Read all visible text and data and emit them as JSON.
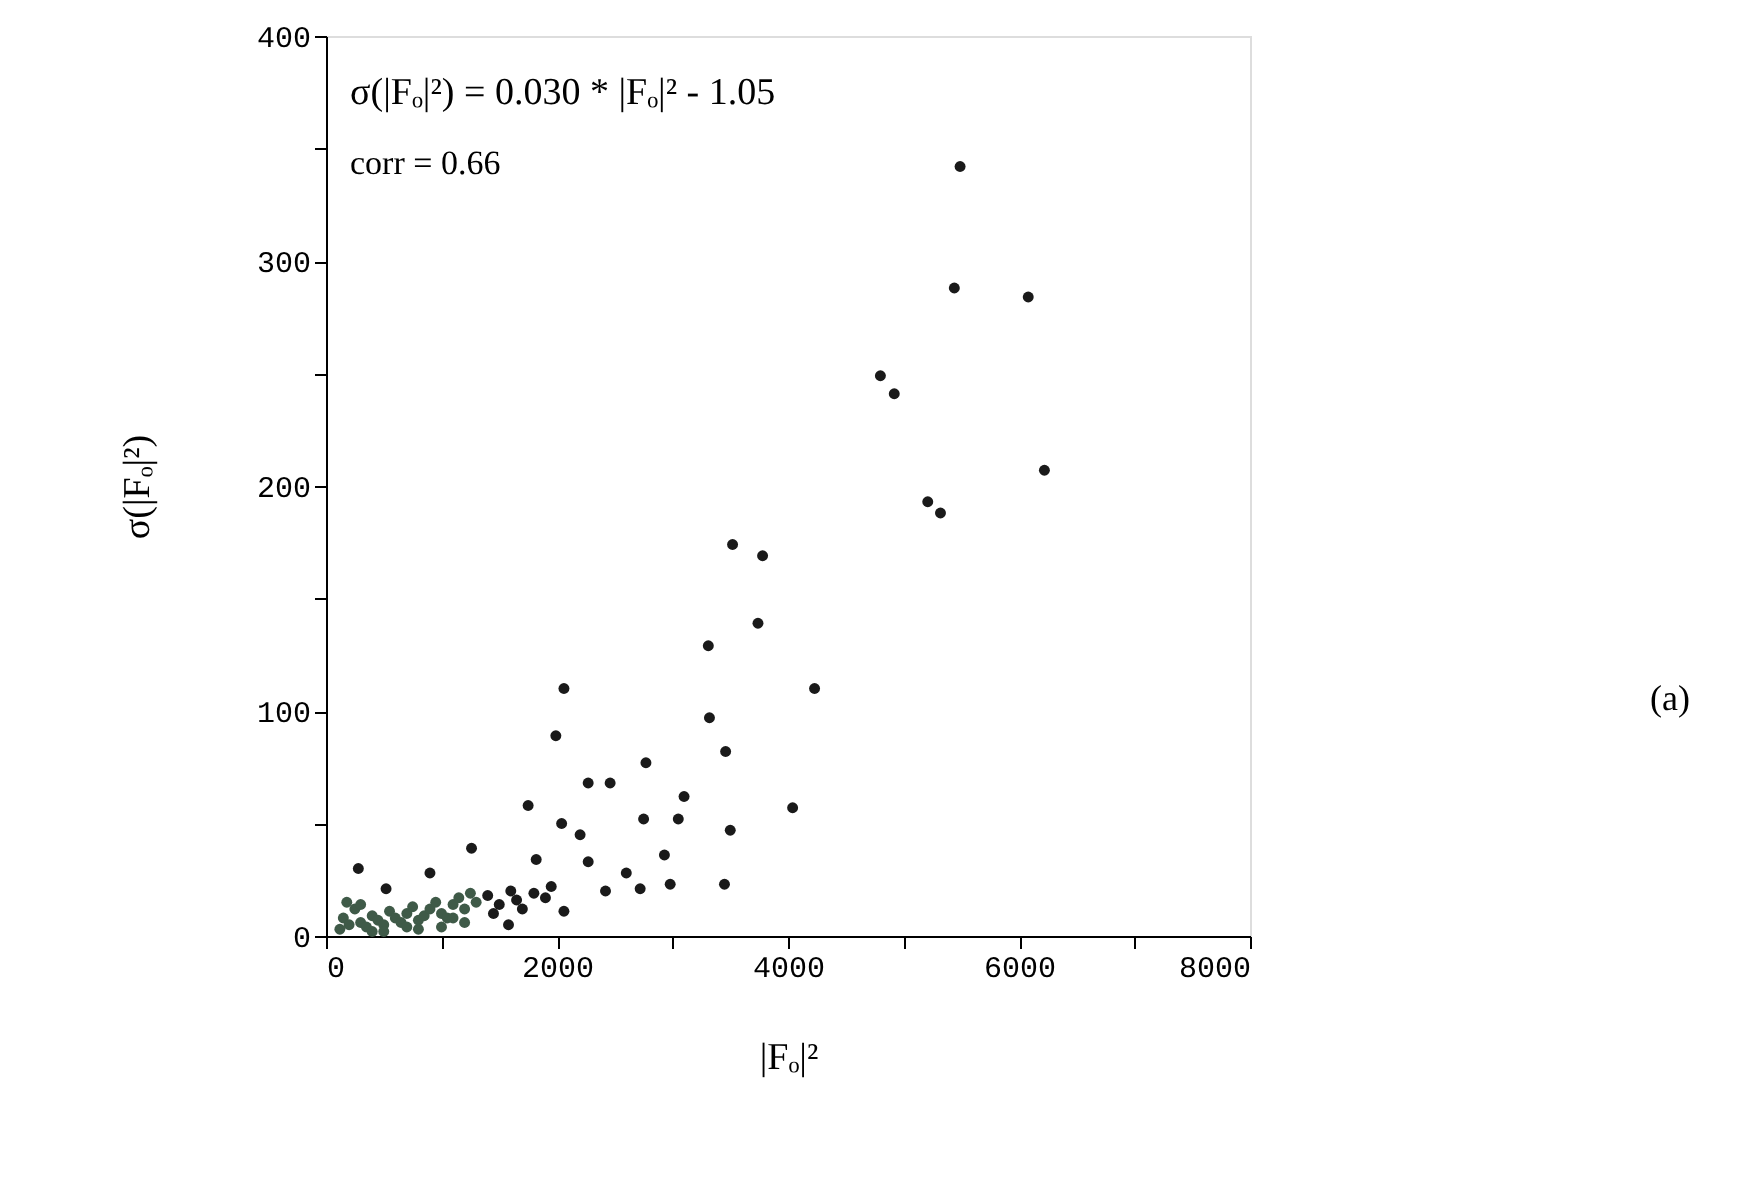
{
  "chart_data": {
    "type": "scatter",
    "xlabel": "|Fₒ|²",
    "ylabel": "σ(|Fₒ|²)",
    "annotations": [
      "σ(|Fₒ|²)  =  0.030 * |Fₒ|² - 1.05",
      "corr = 0.66",
      "(a)"
    ],
    "xlim": [
      0,
      8000
    ],
    "ylim": [
      0,
      400
    ],
    "xticks": [
      0,
      {
        "value": 1000,
        "label": null
      },
      2000,
      {
        "value": 3000,
        "label": null
      },
      4000,
      {
        "value": 5000,
        "label": null
      },
      6000,
      {
        "value": 7000,
        "label": null
      },
      8000
    ],
    "yticks": [
      0,
      {
        "value": 50,
        "label": null
      },
      100,
      {
        "value": 150,
        "label": null
      },
      200,
      {
        "value": 250,
        "label": null
      },
      300,
      {
        "value": 350,
        "label": null
      },
      400
    ],
    "marker": "circle",
    "grid": false,
    "series": [
      {
        "color": "#3f5a48",
        "x": [
          120,
          150,
          200,
          250,
          300,
          350,
          400,
          450,
          500,
          550,
          600,
          650,
          700,
          750,
          800,
          850,
          900,
          950,
          1000,
          1050,
          1100,
          1150,
          1200,
          1250,
          1300,
          180,
          300,
          500,
          800,
          1000,
          1200,
          400,
          700,
          1100
        ],
        "values": [
          3,
          8,
          5,
          12,
          6,
          4,
          9,
          7,
          5,
          11,
          8,
          6,
          10,
          13,
          7,
          9,
          12,
          15,
          10,
          8,
          14,
          17,
          12,
          19,
          15,
          15,
          14,
          2,
          3,
          4,
          6,
          2,
          4,
          8
        ]
      },
      {
        "color": "#1a1a1a",
        "x": [
          5490,
          5440,
          6080,
          4800,
          4920,
          6220,
          5210,
          5320,
          3520,
          3780,
          3740,
          3310,
          2060,
          4230,
          3320,
          1990,
          3460,
          2770,
          2270,
          2460,
          3100,
          1750,
          4040,
          2040,
          2750,
          3050,
          2200,
          3500,
          1260,
          2930,
          1820,
          280,
          2270,
          900,
          2600,
          520,
          2720,
          2980,
          3450,
          2420,
          2060,
          1580,
          1400,
          1500,
          1600,
          1700,
          1800,
          1900,
          1950,
          1450,
          1650
        ],
        "values": [
          342,
          288,
          284,
          249,
          241,
          207,
          193,
          188,
          174,
          169,
          139,
          129,
          110,
          110,
          97,
          89,
          82,
          77,
          68,
          68,
          62,
          58,
          57,
          50,
          52,
          52,
          45,
          47,
          39,
          36,
          34,
          30,
          33,
          28,
          28,
          21,
          21,
          23,
          23,
          20,
          11,
          5,
          18,
          14,
          20,
          12,
          19,
          17,
          22,
          10,
          16
        ]
      }
    ]
  }
}
